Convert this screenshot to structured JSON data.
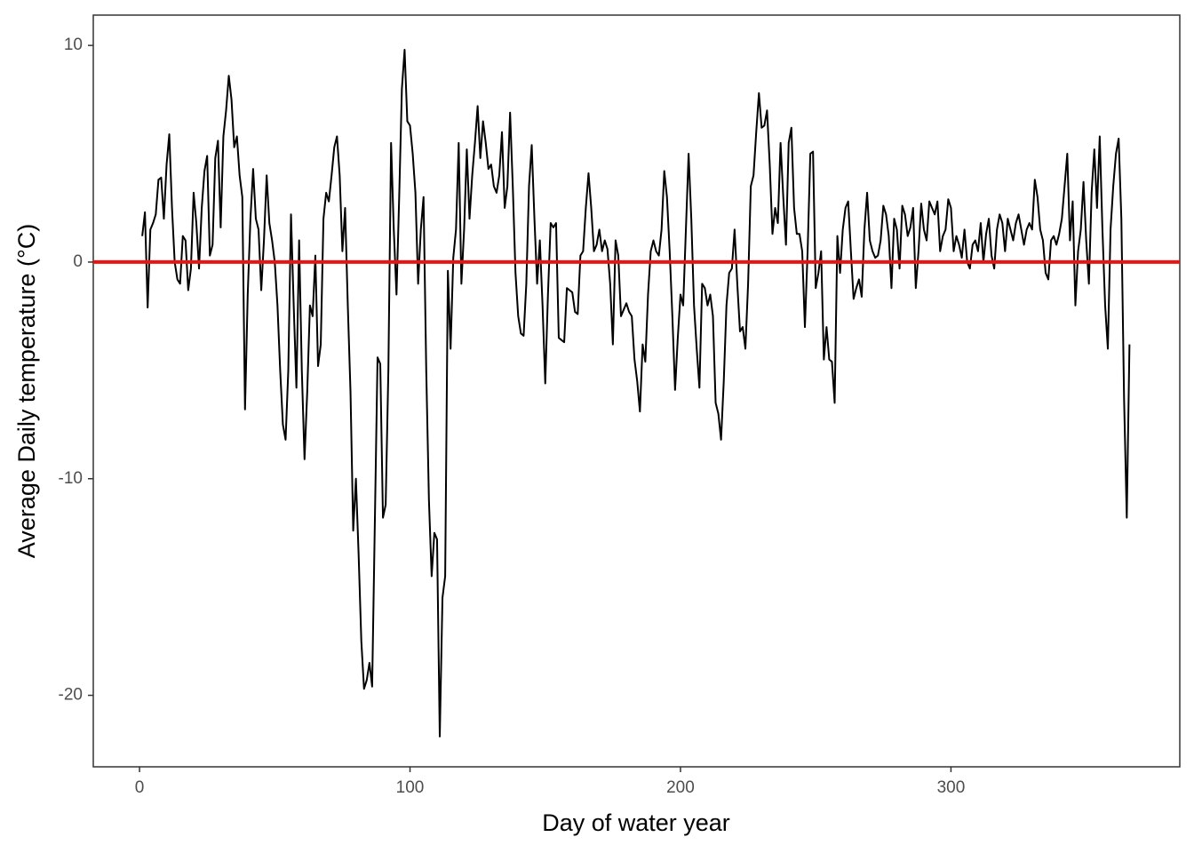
{
  "chart_data": {
    "type": "line",
    "x_label": "Day of water year",
    "y_label": "Average Daily temperature (°C)",
    "x": [
      1,
      2,
      3,
      4,
      5,
      6,
      7,
      8,
      9,
      10,
      11,
      12,
      13,
      14,
      15,
      16,
      17,
      18,
      19,
      20,
      21,
      22,
      23,
      24,
      25,
      26,
      27,
      28,
      29,
      30,
      31,
      32,
      33,
      34,
      35,
      36,
      37,
      38,
      39,
      40,
      41,
      42,
      43,
      44,
      45,
      46,
      47,
      48,
      49,
      50,
      51,
      52,
      53,
      54,
      55,
      56,
      57,
      58,
      59,
      60,
      61,
      62,
      63,
      64,
      65,
      66,
      67,
      68,
      69,
      70,
      71,
      72,
      73,
      74,
      75,
      76,
      77,
      78,
      79,
      80,
      81,
      82,
      83,
      84,
      85,
      86,
      87,
      88,
      89,
      90,
      91,
      92,
      93,
      94,
      95,
      96,
      97,
      98,
      99,
      100,
      101,
      102,
      103,
      104,
      105,
      106,
      107,
      108,
      109,
      110,
      111,
      112,
      113,
      114,
      115,
      116,
      117,
      118,
      119,
      120,
      121,
      122,
      123,
      124,
      125,
      126,
      127,
      128,
      129,
      130,
      131,
      132,
      133,
      134,
      135,
      136,
      137,
      138,
      139,
      140,
      141,
      142,
      143,
      144,
      145,
      146,
      147,
      148,
      149,
      150,
      151,
      152,
      153,
      154,
      155,
      156,
      157,
      158,
      159,
      160,
      161,
      162,
      163,
      164,
      165,
      166,
      167,
      168,
      169,
      170,
      171,
      172,
      173,
      174,
      175,
      176,
      177,
      178,
      179,
      180,
      181,
      182,
      183,
      184,
      185,
      186,
      187,
      188,
      189,
      190,
      191,
      192,
      193,
      194,
      195,
      196,
      197,
      198,
      199,
      200,
      201,
      202,
      203,
      204,
      205,
      206,
      207,
      208,
      209,
      210,
      211,
      212,
      213,
      214,
      215,
      216,
      217,
      218,
      219,
      220,
      221,
      222,
      223,
      224,
      225,
      226,
      227,
      228,
      229,
      230,
      231,
      232,
      233,
      234,
      235,
      236,
      237,
      238,
      239,
      240,
      241,
      242,
      243,
      244,
      245,
      246,
      247,
      248,
      249,
      250,
      251,
      252,
      253,
      254,
      255,
      256,
      257,
      258,
      259,
      260,
      261,
      262,
      263,
      264,
      265,
      266,
      267,
      268,
      269,
      270,
      271,
      272,
      273,
      274,
      275,
      276,
      277,
      278,
      279,
      280,
      281,
      282,
      283,
      284,
      285,
      286,
      287,
      288,
      289,
      290,
      291,
      292,
      293,
      294,
      295,
      296,
      297,
      298,
      299,
      300,
      301,
      302,
      303,
      304,
      305,
      306,
      307,
      308,
      309,
      310,
      311,
      312,
      313,
      314,
      315,
      316,
      317,
      318,
      319,
      320,
      321,
      322,
      323,
      324,
      325,
      326,
      327,
      328,
      329,
      330,
      331,
      332,
      333,
      334,
      335,
      336,
      337,
      338,
      339,
      340,
      341,
      342,
      343,
      344,
      345,
      346,
      347,
      348,
      349,
      350,
      351,
      352,
      353,
      354,
      355,
      356,
      357,
      358,
      359,
      360,
      361,
      362,
      363,
      364,
      365,
      366
    ],
    "series": [
      {
        "color": "#000000",
        "values": [
          1.2,
          2.3,
          -2.1,
          1.5,
          1.8,
          2.2,
          3.8,
          3.9,
          2.0,
          4.5,
          5.9,
          2.5,
          0.0,
          -0.8,
          -1.0,
          1.2,
          1.0,
          -1.3,
          -0.3,
          3.2,
          1.8,
          -0.3,
          2.5,
          4.2,
          4.9,
          0.3,
          0.8,
          4.8,
          5.6,
          1.6,
          5.8,
          7.0,
          8.6,
          7.5,
          5.3,
          5.8,
          4.0,
          3.0,
          -6.8,
          -1.5,
          2.0,
          4.3,
          2.0,
          1.5,
          -1.3,
          1.0,
          4.0,
          1.8,
          1.0,
          0.0,
          -2.0,
          -5.0,
          -7.5,
          -8.2,
          -5.0,
          2.2,
          -2.0,
          -5.8,
          1.0,
          -5.0,
          -9.1,
          -6.0,
          -2.0,
          -2.5,
          0.3,
          -4.8,
          -3.8,
          2.0,
          3.2,
          2.8,
          4.0,
          5.3,
          5.8,
          4.0,
          0.5,
          2.5,
          -2.0,
          -6.0,
          -12.4,
          -10.0,
          -13.5,
          -17.5,
          -19.7,
          -19.3,
          -18.5,
          -19.6,
          -12.0,
          -4.4,
          -4.7,
          -11.8,
          -11.2,
          -5.0,
          5.5,
          1.5,
          -1.5,
          3.0,
          8.0,
          9.8,
          6.5,
          6.3,
          5.0,
          3.2,
          -1.0,
          1.5,
          3.0,
          -5.0,
          -11.0,
          -14.5,
          -12.5,
          -12.8,
          -21.9,
          -15.5,
          -14.5,
          -0.4,
          -4.0,
          0.2,
          1.5,
          5.5,
          -1.0,
          1.5,
          5.2,
          2.0,
          4.0,
          5.5,
          7.2,
          4.8,
          6.5,
          5.5,
          4.3,
          4.5,
          3.5,
          3.2,
          4.0,
          6.0,
          2.5,
          3.5,
          6.9,
          3.5,
          -0.5,
          -2.5,
          -3.3,
          -3.4,
          -1.0,
          3.5,
          5.4,
          2.0,
          -1.0,
          1.0,
          -2.0,
          -5.6,
          -1.5,
          1.8,
          1.6,
          1.8,
          -3.5,
          -3.6,
          -3.7,
          -1.2,
          -1.3,
          -1.4,
          -2.3,
          -2.4,
          0.3,
          0.5,
          2.5,
          4.1,
          2.5,
          0.5,
          0.8,
          1.5,
          0.5,
          1.0,
          0.6,
          -1.0,
          -3.8,
          1.0,
          0.3,
          -2.5,
          -2.2,
          -1.9,
          -2.3,
          -2.5,
          -4.5,
          -5.5,
          -6.9,
          -3.8,
          -4.6,
          -1.5,
          0.5,
          1.0,
          0.5,
          0.3,
          1.5,
          4.2,
          3.0,
          0.5,
          -2.5,
          -5.9,
          -3.5,
          -1.5,
          -2.0,
          1.5,
          5.0,
          2.0,
          -2.0,
          -4.0,
          -5.8,
          -1.0,
          -1.2,
          -2.0,
          -1.5,
          -2.5,
          -6.5,
          -7.0,
          -8.2,
          -5.5,
          -2.0,
          -0.5,
          -0.3,
          1.5,
          -1.0,
          -3.2,
          -3.0,
          -4.0,
          -1.0,
          3.5,
          4.0,
          6.0,
          7.8,
          6.2,
          6.3,
          7.0,
          4.5,
          1.3,
          2.5,
          1.8,
          5.5,
          3.0,
          0.8,
          5.5,
          6.2,
          2.5,
          1.3,
          1.3,
          0.5,
          -3.0,
          0.5,
          5.0,
          5.1,
          -1.2,
          -0.5,
          0.5,
          -4.5,
          -3.0,
          -4.5,
          -4.6,
          -6.5,
          1.2,
          -0.5,
          1.5,
          2.5,
          2.8,
          0.5,
          -1.7,
          -1.2,
          -0.8,
          -1.6,
          1.5,
          3.2,
          1.0,
          0.5,
          0.2,
          0.3,
          1.0,
          2.6,
          2.2,
          1.2,
          -1.2,
          2.0,
          1.5,
          -0.3,
          2.6,
          2.2,
          1.2,
          1.6,
          2.5,
          -1.2,
          0.5,
          2.7,
          1.5,
          1.0,
          2.8,
          2.5,
          2.2,
          2.8,
          0.5,
          1.2,
          1.5,
          2.9,
          2.5,
          0.5,
          1.2,
          0.8,
          0.2,
          1.5,
          0.0,
          -0.3,
          0.8,
          1.0,
          0.5,
          1.8,
          0.0,
          1.3,
          2.0,
          0.3,
          -0.3,
          1.5,
          2.2,
          1.8,
          0.5,
          2.0,
          1.5,
          1.0,
          1.8,
          2.2,
          1.5,
          0.8,
          1.5,
          1.8,
          1.5,
          3.8,
          3.0,
          1.5,
          1.0,
          -0.5,
          -0.8,
          1.0,
          1.2,
          0.8,
          1.3,
          2.0,
          3.5,
          5.0,
          1.0,
          2.8,
          -2.0,
          0.5,
          1.5,
          3.7,
          1.0,
          -1.0,
          3.2,
          5.2,
          2.5,
          5.8,
          1.5,
          -2.0,
          -4.0,
          1.5,
          3.5,
          5.0,
          5.7,
          2.0,
          -6.3,
          -11.8,
          -3.8
        ]
      }
    ],
    "hline": 0,
    "hline_color": "#ee1111",
    "xlim": [
      -17.1,
      384.6
    ],
    "xticks": [
      0,
      100,
      200,
      300
    ],
    "ylim": [
      -23.3,
      11.4
    ],
    "yticks": [
      -20,
      -10,
      0,
      10
    ],
    "grid": false
  }
}
